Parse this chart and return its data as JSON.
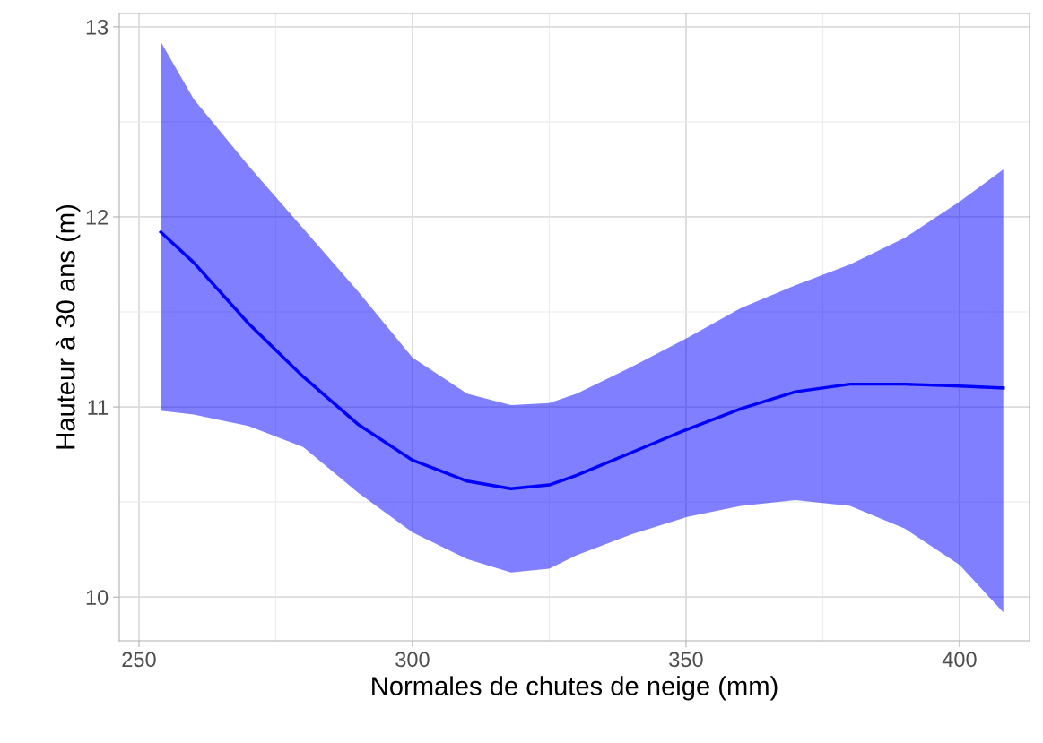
{
  "chart_data": {
    "type": "line",
    "xlabel": "Normales de chutes de neige (mm)",
    "ylabel": "Hauteur à 30 ans (m)",
    "xlim": [
      246.4,
      412.8
    ],
    "ylim": [
      9.77,
      13.07
    ],
    "xticks": [
      250,
      300,
      350,
      400
    ],
    "yticks": [
      10,
      11,
      12,
      13
    ],
    "grid": true,
    "marker": "none",
    "line_style": "solid",
    "series": [
      {
        "color": "#0000ff",
        "x": [
          254,
          260,
          270,
          280,
          290,
          300,
          310,
          318,
          325,
          330,
          340,
          350,
          360,
          370,
          380,
          390,
          400,
          408
        ],
        "values": [
          11.92,
          11.76,
          11.44,
          11.16,
          10.91,
          10.72,
          10.61,
          10.57,
          10.59,
          10.64,
          10.76,
          10.88,
          10.99,
          11.08,
          11.12,
          11.12,
          11.11,
          11.1
        ],
        "lower": [
          10.98,
          10.96,
          10.9,
          10.79,
          10.55,
          10.34,
          10.2,
          10.13,
          10.15,
          10.22,
          10.33,
          10.42,
          10.48,
          10.51,
          10.48,
          10.36,
          10.17,
          9.92
        ],
        "upper": [
          12.92,
          12.62,
          12.27,
          11.94,
          11.61,
          11.26,
          11.07,
          11.01,
          11.02,
          11.07,
          11.21,
          11.36,
          11.52,
          11.64,
          11.75,
          11.89,
          12.08,
          12.25
        ]
      }
    ]
  }
}
